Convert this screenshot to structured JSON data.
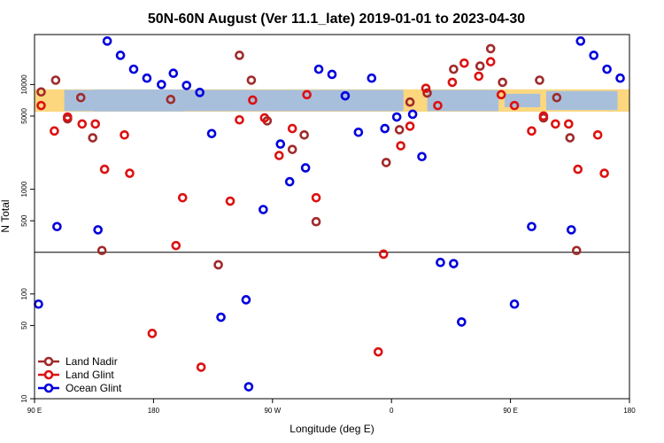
{
  "chart_data": {
    "type": "scatter",
    "title": "50N-60N August (Ver 11.1_late)   2019-01-01 to 2023-04-30",
    "xlabel": "Longitude (deg E)",
    "ylabel": "N Total",
    "y_scale": "log",
    "ylim": [
      10,
      30000
    ],
    "x_axis": {
      "domain_min": 0,
      "domain_max": 450,
      "ticks": [
        {
          "value": 0,
          "label": "90 E"
        },
        {
          "value": 90,
          "label": "180"
        },
        {
          "value": 180,
          "label": "90 W"
        },
        {
          "value": 270,
          "label": "0"
        },
        {
          "value": 360,
          "label": "90 E"
        },
        {
          "value": 450,
          "label": "180"
        }
      ]
    },
    "y_ticks": [
      {
        "value": 10,
        "label": "10"
      },
      {
        "value": 50,
        "label": "50"
      },
      {
        "value": 100,
        "label": "100"
      },
      {
        "value": 500,
        "label": "500"
      },
      {
        "value": 1000,
        "label": "1000"
      },
      {
        "value": 5000,
        "label": "5000"
      },
      {
        "value": 10000,
        "label": "10000"
      }
    ],
    "reference_line_y": 250,
    "map_band": {
      "y_low": 5500,
      "y_high": 9000,
      "ocean_color": "#a8bfdc",
      "land_color": "#fdd77e"
    },
    "legend_position": "bottom-left",
    "series": [
      {
        "name": "Land Nadir",
        "color": "#a02a2a",
        "points": [
          {
            "x": 5,
            "y": 8500
          },
          {
            "x": 16,
            "y": 11000
          },
          {
            "x": 25,
            "y": 4700
          },
          {
            "x": 35,
            "y": 7500
          },
          {
            "x": 44,
            "y": 3100
          },
          {
            "x": 51,
            "y": 260
          },
          {
            "x": 103,
            "y": 7200
          },
          {
            "x": 139,
            "y": 190
          },
          {
            "x": 155,
            "y": 19000
          },
          {
            "x": 164,
            "y": 11000
          },
          {
            "x": 176,
            "y": 4500
          },
          {
            "x": 195,
            "y": 2400
          },
          {
            "x": 204,
            "y": 3300
          },
          {
            "x": 213,
            "y": 490
          },
          {
            "x": 266,
            "y": 1800
          },
          {
            "x": 276,
            "y": 3700
          },
          {
            "x": 284,
            "y": 6800
          },
          {
            "x": 297,
            "y": 8300
          },
          {
            "x": 317,
            "y": 14000
          },
          {
            "x": 337,
            "y": 15000
          },
          {
            "x": 345,
            "y": 22000
          },
          {
            "x": 354,
            "y": 10500
          },
          {
            "x": 382,
            "y": 11000
          },
          {
            "x": 385,
            "y": 4800
          },
          {
            "x": 395,
            "y": 7500
          },
          {
            "x": 405,
            "y": 3100
          },
          {
            "x": 410,
            "y": 260
          }
        ]
      },
      {
        "name": "Land Glint",
        "color": "#dd1111",
        "points": [
          {
            "x": 5,
            "y": 6300
          },
          {
            "x": 15,
            "y": 3600
          },
          {
            "x": 25,
            "y": 4900
          },
          {
            "x": 36,
            "y": 4200
          },
          {
            "x": 46,
            "y": 4200
          },
          {
            "x": 53,
            "y": 1550
          },
          {
            "x": 68,
            "y": 3300
          },
          {
            "x": 72,
            "y": 1420
          },
          {
            "x": 89,
            "y": 42
          },
          {
            "x": 107,
            "y": 290
          },
          {
            "x": 112,
            "y": 830
          },
          {
            "x": 126,
            "y": 20
          },
          {
            "x": 148,
            "y": 770
          },
          {
            "x": 155,
            "y": 4600
          },
          {
            "x": 165,
            "y": 7100
          },
          {
            "x": 174,
            "y": 4800
          },
          {
            "x": 185,
            "y": 2100
          },
          {
            "x": 195,
            "y": 3800
          },
          {
            "x": 206,
            "y": 8000
          },
          {
            "x": 213,
            "y": 830
          },
          {
            "x": 260,
            "y": 28
          },
          {
            "x": 264,
            "y": 240
          },
          {
            "x": 277,
            "y": 2600
          },
          {
            "x": 284,
            "y": 4000
          },
          {
            "x": 296,
            "y": 9200
          },
          {
            "x": 305,
            "y": 6300
          },
          {
            "x": 316,
            "y": 10500
          },
          {
            "x": 325,
            "y": 16000
          },
          {
            "x": 336,
            "y": 12000
          },
          {
            "x": 345,
            "y": 16500
          },
          {
            "x": 353,
            "y": 8000
          },
          {
            "x": 363,
            "y": 6300
          },
          {
            "x": 376,
            "y": 3600
          },
          {
            "x": 385,
            "y": 5000
          },
          {
            "x": 394,
            "y": 4200
          },
          {
            "x": 404,
            "y": 4200
          },
          {
            "x": 411,
            "y": 1550
          },
          {
            "x": 426,
            "y": 3300
          },
          {
            "x": 431,
            "y": 1420
          }
        ]
      },
      {
        "name": "Ocean Glint",
        "color": "#0000dd",
        "points": [
          {
            "x": 3,
            "y": 80
          },
          {
            "x": 17,
            "y": 440
          },
          {
            "x": 48,
            "y": 410
          },
          {
            "x": 55,
            "y": 26000
          },
          {
            "x": 65,
            "y": 19000
          },
          {
            "x": 75,
            "y": 14000
          },
          {
            "x": 85,
            "y": 11500
          },
          {
            "x": 96,
            "y": 10000
          },
          {
            "x": 105,
            "y": 12800
          },
          {
            "x": 115,
            "y": 9800
          },
          {
            "x": 125,
            "y": 8400
          },
          {
            "x": 134,
            "y": 3400
          },
          {
            "x": 141,
            "y": 60
          },
          {
            "x": 160,
            "y": 88
          },
          {
            "x": 162,
            "y": 13
          },
          {
            "x": 173,
            "y": 640
          },
          {
            "x": 186,
            "y": 2700
          },
          {
            "x": 193,
            "y": 1180
          },
          {
            "x": 205,
            "y": 1600
          },
          {
            "x": 215,
            "y": 14000
          },
          {
            "x": 225,
            "y": 12500
          },
          {
            "x": 235,
            "y": 7800
          },
          {
            "x": 245,
            "y": 3500
          },
          {
            "x": 255,
            "y": 11500
          },
          {
            "x": 265,
            "y": 3800
          },
          {
            "x": 274,
            "y": 4900
          },
          {
            "x": 286,
            "y": 5200
          },
          {
            "x": 293,
            "y": 2050
          },
          {
            "x": 307,
            "y": 200
          },
          {
            "x": 317,
            "y": 195
          },
          {
            "x": 323,
            "y": 54
          },
          {
            "x": 363,
            "y": 80
          },
          {
            "x": 376,
            "y": 440
          },
          {
            "x": 406,
            "y": 410
          },
          {
            "x": 413,
            "y": 26000
          },
          {
            "x": 423,
            "y": 19000
          },
          {
            "x": 433,
            "y": 14000
          },
          {
            "x": 443,
            "y": 11500
          }
        ]
      }
    ]
  }
}
